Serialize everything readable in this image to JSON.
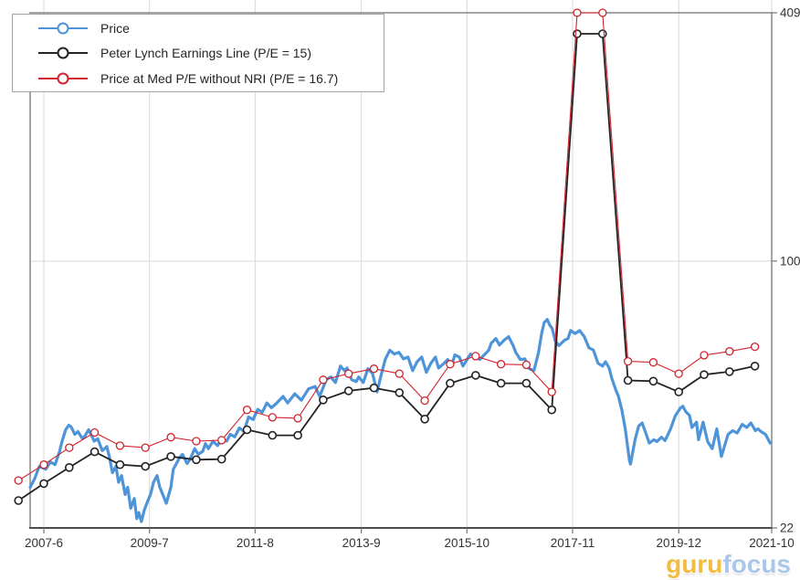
{
  "legend": {
    "items": [
      {
        "label": "Price",
        "color": "#4e94d8"
      },
      {
        "label": "Peter Lynch Earnings Line (P/E = 15)",
        "color": "#232323"
      },
      {
        "label": "Price at Med P/E without NRI (P/E = 16.7)",
        "color": "#d1242e"
      }
    ]
  },
  "watermark": {
    "part1": "guru",
    "part2": "focus",
    "color1": "#f2bc42",
    "color2": "#a9c7e9"
  },
  "chart_data": {
    "type": "line",
    "title": "",
    "xlabel": "",
    "ylabel": "",
    "grid": true,
    "legend_position": "top-left",
    "x_axis": {
      "min": 2007.15,
      "max": 2021.75,
      "ticks": [
        {
          "label": "2007-6",
          "v": 2007.42
        },
        {
          "label": "2009-7",
          "v": 2009.5
        },
        {
          "label": "2011-8",
          "v": 2011.58
        },
        {
          "label": "2013-9",
          "v": 2013.67
        },
        {
          "label": "2015-10",
          "v": 2015.75
        },
        {
          "label": "2017-11",
          "v": 2017.83
        },
        {
          "label": "2019-12",
          "v": 2019.92
        },
        {
          "label": "2021-10",
          "v": 2021.75
        }
      ]
    },
    "y_axis": {
      "scale": "log",
      "position": "right",
      "min": 22,
      "max": 409,
      "ticks": [
        {
          "label": "409",
          "v": 409
        },
        {
          "label": "100",
          "v": 100,
          "grid": true
        },
        {
          "label": "22",
          "v": 22
        }
      ]
    },
    "style": {
      "grid_color": "#d9d9d9",
      "border_color": "#767676",
      "axis_color": "#4d4d4d",
      "label_color": "#333333"
    },
    "series": [
      {
        "name": "Price",
        "color": "#4e94d8",
        "width": 3.2,
        "markers": false,
        "points": [
          [
            2007.15,
            27.7
          ],
          [
            2007.24,
            29.1
          ],
          [
            2007.33,
            31.2
          ],
          [
            2007.46,
            30.7
          ],
          [
            2007.55,
            32.0
          ],
          [
            2007.64,
            31.5
          ],
          [
            2007.73,
            34.0
          ],
          [
            2007.78,
            36.0
          ],
          [
            2007.85,
            38.4
          ],
          [
            2007.91,
            39.4
          ],
          [
            2007.96,
            39.0
          ],
          [
            2008.03,
            37.4
          ],
          [
            2008.09,
            38.0
          ],
          [
            2008.18,
            36.5
          ],
          [
            2008.23,
            37.1
          ],
          [
            2008.3,
            38.4
          ],
          [
            2008.35,
            37.4
          ],
          [
            2008.41,
            36.0
          ],
          [
            2008.48,
            36.5
          ],
          [
            2008.57,
            34.1
          ],
          [
            2008.66,
            34.9
          ],
          [
            2008.71,
            32.9
          ],
          [
            2008.77,
            30.1
          ],
          [
            2008.84,
            31.2
          ],
          [
            2008.89,
            28.5
          ],
          [
            2008.95,
            29.6
          ],
          [
            2009.02,
            26.6
          ],
          [
            2009.07,
            27.7
          ],
          [
            2009.13,
            24.6
          ],
          [
            2009.2,
            26.0
          ],
          [
            2009.25,
            23.2
          ],
          [
            2009.29,
            24.0
          ],
          [
            2009.34,
            22.8
          ],
          [
            2009.4,
            24.4
          ],
          [
            2009.47,
            25.7
          ],
          [
            2009.52,
            26.6
          ],
          [
            2009.58,
            28.5
          ],
          [
            2009.65,
            29.6
          ],
          [
            2009.7,
            27.8
          ],
          [
            2009.76,
            26.6
          ],
          [
            2009.83,
            25.3
          ],
          [
            2009.92,
            27.7
          ],
          [
            2009.97,
            30.7
          ],
          [
            2010.03,
            31.7
          ],
          [
            2010.1,
            32.9
          ],
          [
            2010.15,
            33.4
          ],
          [
            2010.24,
            31.7
          ],
          [
            2010.3,
            32.5
          ],
          [
            2010.39,
            34.5
          ],
          [
            2010.46,
            33.4
          ],
          [
            2010.55,
            34.0
          ],
          [
            2010.6,
            35.5
          ],
          [
            2010.66,
            34.5
          ],
          [
            2010.75,
            36.0
          ],
          [
            2010.84,
            35.1
          ],
          [
            2010.93,
            36.5
          ],
          [
            2011.02,
            36.0
          ],
          [
            2011.09,
            37.4
          ],
          [
            2011.18,
            36.9
          ],
          [
            2011.27,
            38.8
          ],
          [
            2011.36,
            38.0
          ],
          [
            2011.45,
            41.3
          ],
          [
            2011.54,
            40.7
          ],
          [
            2011.63,
            43.1
          ],
          [
            2011.72,
            42.4
          ],
          [
            2011.81,
            44.7
          ],
          [
            2011.9,
            43.5
          ],
          [
            2011.99,
            44.5
          ],
          [
            2012.13,
            46.4
          ],
          [
            2012.22,
            44.7
          ],
          [
            2012.36,
            47.1
          ],
          [
            2012.49,
            45.4
          ],
          [
            2012.63,
            48.4
          ],
          [
            2012.76,
            49.1
          ],
          [
            2012.85,
            46.4
          ],
          [
            2012.98,
            51.0
          ],
          [
            2013.07,
            51.8
          ],
          [
            2013.16,
            50.2
          ],
          [
            2013.26,
            55.1
          ],
          [
            2013.34,
            53.7
          ],
          [
            2013.39,
            54.5
          ],
          [
            2013.48,
            51.0
          ],
          [
            2013.57,
            50.5
          ],
          [
            2013.62,
            51.8
          ],
          [
            2013.71,
            50.2
          ],
          [
            2013.8,
            54.3
          ],
          [
            2013.89,
            52.9
          ],
          [
            2013.98,
            47.6
          ],
          [
            2014.05,
            51.8
          ],
          [
            2014.14,
            57.2
          ],
          [
            2014.23,
            60.3
          ],
          [
            2014.32,
            59.0
          ],
          [
            2014.41,
            59.6
          ],
          [
            2014.5,
            57.4
          ],
          [
            2014.59,
            58.0
          ],
          [
            2014.68,
            53.7
          ],
          [
            2014.77,
            56.5
          ],
          [
            2014.86,
            58.0
          ],
          [
            2014.95,
            53.2
          ],
          [
            2015.04,
            56.0
          ],
          [
            2015.13,
            58.0
          ],
          [
            2015.19,
            54.5
          ],
          [
            2015.28,
            55.7
          ],
          [
            2015.37,
            57.2
          ],
          [
            2015.46,
            55.7
          ],
          [
            2015.51,
            58.7
          ],
          [
            2015.6,
            58.0
          ],
          [
            2015.67,
            55.1
          ],
          [
            2015.76,
            57.4
          ],
          [
            2015.82,
            59.0
          ],
          [
            2015.91,
            58.0
          ],
          [
            2016.0,
            57.2
          ],
          [
            2016.09,
            58.7
          ],
          [
            2016.18,
            60.3
          ],
          [
            2016.23,
            62.8
          ],
          [
            2016.32,
            64.4
          ],
          [
            2016.39,
            62.1
          ],
          [
            2016.48,
            63.8
          ],
          [
            2016.57,
            65.1
          ],
          [
            2016.66,
            61.9
          ],
          [
            2016.71,
            59.6
          ],
          [
            2016.8,
            57.2
          ],
          [
            2016.89,
            57.4
          ],
          [
            2016.98,
            54.3
          ],
          [
            2017.07,
            53.7
          ],
          [
            2017.16,
            59.6
          ],
          [
            2017.22,
            66.3
          ],
          [
            2017.27,
            70.5
          ],
          [
            2017.33,
            71.8
          ],
          [
            2017.38,
            69.5
          ],
          [
            2017.43,
            68.2
          ],
          [
            2017.49,
            63.5
          ],
          [
            2017.56,
            61.9
          ],
          [
            2017.67,
            63.8
          ],
          [
            2017.74,
            64.4
          ],
          [
            2017.79,
            67.4
          ],
          [
            2017.88,
            66.3
          ],
          [
            2017.97,
            67.4
          ],
          [
            2018.06,
            65.1
          ],
          [
            2018.15,
            61.2
          ],
          [
            2018.24,
            60.3
          ],
          [
            2018.33,
            56.0
          ],
          [
            2018.42,
            55.1
          ],
          [
            2018.48,
            56.5
          ],
          [
            2018.55,
            54.5
          ],
          [
            2018.6,
            51.5
          ],
          [
            2018.69,
            47.8
          ],
          [
            2018.73,
            46.6
          ],
          [
            2018.8,
            43.0
          ],
          [
            2018.87,
            38.4
          ],
          [
            2018.95,
            32.2
          ],
          [
            2018.97,
            31.6
          ],
          [
            2019.06,
            36.3
          ],
          [
            2019.13,
            39.2
          ],
          [
            2019.2,
            39.9
          ],
          [
            2019.27,
            37.7
          ],
          [
            2019.34,
            35.6
          ],
          [
            2019.43,
            36.3
          ],
          [
            2019.49,
            35.9
          ],
          [
            2019.58,
            36.8
          ],
          [
            2019.65,
            36.1
          ],
          [
            2019.76,
            38.6
          ],
          [
            2019.85,
            41.5
          ],
          [
            2019.95,
            43.4
          ],
          [
            2020.0,
            43.9
          ],
          [
            2020.06,
            42.5
          ],
          [
            2020.13,
            41.7
          ],
          [
            2020.18,
            38.9
          ],
          [
            2020.27,
            40.1
          ],
          [
            2020.31,
            36.3
          ],
          [
            2020.4,
            40.1
          ],
          [
            2020.49,
            35.9
          ],
          [
            2020.58,
            34.5
          ],
          [
            2020.67,
            38.6
          ],
          [
            2020.76,
            33.0
          ],
          [
            2020.89,
            37.4
          ],
          [
            2020.98,
            38.2
          ],
          [
            2021.07,
            37.7
          ],
          [
            2021.17,
            39.6
          ],
          [
            2021.26,
            38.9
          ],
          [
            2021.34,
            39.9
          ],
          [
            2021.43,
            38.2
          ],
          [
            2021.48,
            38.6
          ],
          [
            2021.54,
            38.0
          ],
          [
            2021.63,
            37.4
          ],
          [
            2021.72,
            35.6
          ]
        ]
      },
      {
        "name": "Peter Lynch Earnings Line (P/E = 15)",
        "color": "#232323",
        "width": 1.8,
        "markers": true,
        "marker_width": 1.6,
        "points": [
          [
            2006.92,
            25.7
          ],
          [
            2007.42,
            28.3
          ],
          [
            2007.92,
            31.0
          ],
          [
            2008.42,
            33.9
          ],
          [
            2008.92,
            31.5
          ],
          [
            2009.42,
            31.2
          ],
          [
            2009.92,
            33.0
          ],
          [
            2010.42,
            32.4
          ],
          [
            2010.92,
            32.5
          ],
          [
            2011.42,
            38.4
          ],
          [
            2011.92,
            37.2
          ],
          [
            2012.42,
            37.2
          ],
          [
            2012.92,
            45.5
          ],
          [
            2013.42,
            47.9
          ],
          [
            2013.92,
            48.7
          ],
          [
            2014.42,
            47.4
          ],
          [
            2014.92,
            40.8
          ],
          [
            2015.42,
            50.0
          ],
          [
            2015.92,
            52.3
          ],
          [
            2016.42,
            50.0
          ],
          [
            2016.92,
            50.0
          ],
          [
            2017.42,
            43.0
          ],
          [
            2017.92,
            363
          ],
          [
            2018.42,
            363
          ],
          [
            2018.92,
            50.8
          ],
          [
            2019.42,
            50.6
          ],
          [
            2019.92,
            47.6
          ],
          [
            2020.42,
            52.5
          ],
          [
            2020.92,
            53.4
          ],
          [
            2021.42,
            55.1
          ]
        ]
      },
      {
        "name": "Price at Med P/E without NRI (P/E = 16.7)",
        "color": "#d1242e",
        "width": 1.1,
        "markers": true,
        "marker_width": 1.3,
        "points": [
          [
            2006.92,
            28.8
          ],
          [
            2007.42,
            31.5
          ],
          [
            2007.92,
            34.7
          ],
          [
            2008.42,
            37.8
          ],
          [
            2008.92,
            35.1
          ],
          [
            2009.42,
            34.7
          ],
          [
            2009.92,
            36.8
          ],
          [
            2010.42,
            36.0
          ],
          [
            2010.92,
            36.2
          ],
          [
            2011.42,
            43.0
          ],
          [
            2011.92,
            41.2
          ],
          [
            2012.42,
            41.0
          ],
          [
            2012.92,
            51.0
          ],
          [
            2013.42,
            52.8
          ],
          [
            2013.92,
            54.3
          ],
          [
            2014.42,
            52.8
          ],
          [
            2014.92,
            45.3
          ],
          [
            2015.42,
            55.7
          ],
          [
            2015.92,
            58.3
          ],
          [
            2016.42,
            55.7
          ],
          [
            2016.92,
            55.5
          ],
          [
            2017.42,
            47.6
          ],
          [
            2017.92,
            409
          ],
          [
            2018.42,
            409
          ],
          [
            2018.92,
            56.6
          ],
          [
            2019.42,
            56.3
          ],
          [
            2019.92,
            52.8
          ],
          [
            2020.42,
            58.6
          ],
          [
            2020.92,
            59.9
          ],
          [
            2021.42,
            61.5
          ]
        ]
      }
    ]
  }
}
